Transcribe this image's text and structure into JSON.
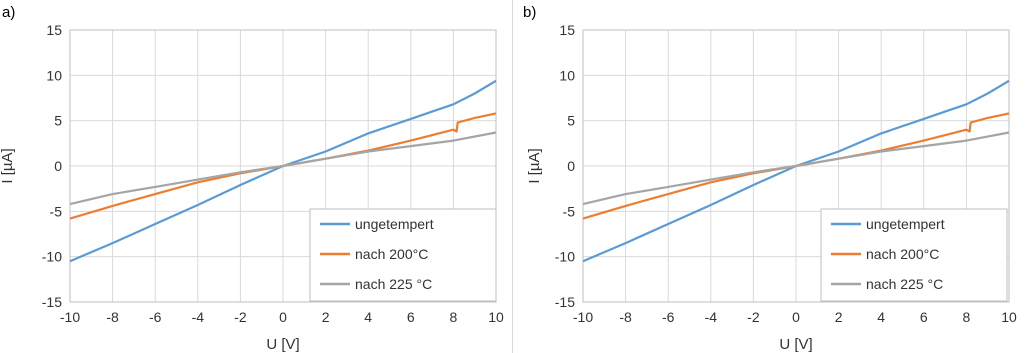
{
  "chart_data": [
    {
      "type": "line",
      "panel_label": "a)",
      "xlabel": "U [V]",
      "ylabel": "I [µA]",
      "xlim": [
        -10,
        10
      ],
      "ylim": [
        -15,
        15
      ],
      "xticks": [
        "-10",
        "-8",
        "-6",
        "-4",
        "-2",
        "0",
        "2",
        "4",
        "6",
        "8",
        "10"
      ],
      "yticks": [
        "15",
        "10",
        "5",
        "0",
        "-5",
        "-10",
        "-15"
      ],
      "grid": true,
      "legend_position": "bottom-right",
      "series": [
        {
          "name": "ungetempert",
          "color": "#5b9bd5",
          "x": [
            -10,
            -8,
            -6,
            -4,
            -2,
            0,
            2,
            4,
            6,
            7,
            8,
            9,
            10
          ],
          "y": [
            -10.5,
            -8.5,
            -6.4,
            -4.3,
            -2.1,
            0,
            1.6,
            3.6,
            5.2,
            6.0,
            6.8,
            8.0,
            9.4
          ]
        },
        {
          "name": "nach 200°C",
          "color": "#ed7d31",
          "x": [
            -10,
            -8,
            -6,
            -4,
            -2,
            0,
            2,
            4,
            6,
            8,
            8.15,
            8.2,
            9,
            10
          ],
          "y": [
            -5.8,
            -4.4,
            -3.1,
            -1.8,
            -0.8,
            0,
            0.8,
            1.7,
            2.8,
            4.0,
            3.8,
            4.8,
            5.3,
            5.8
          ]
        },
        {
          "name": "nach 225 °C",
          "color": "#a5a5a5",
          "x": [
            -10,
            -8,
            -6,
            -4,
            -2,
            0,
            2,
            4,
            6,
            8,
            10
          ],
          "y": [
            -4.2,
            -3.1,
            -2.3,
            -1.5,
            -0.7,
            0,
            0.8,
            1.6,
            2.2,
            2.8,
            3.7
          ]
        }
      ]
    },
    {
      "type": "line",
      "panel_label": "b)",
      "xlabel": "U [V]",
      "ylabel": "I [µA]",
      "xlim": [
        -10,
        10
      ],
      "ylim": [
        -15,
        15
      ],
      "xticks": [
        "-10",
        "-8",
        "-6",
        "-4",
        "-2",
        "0",
        "2",
        "4",
        "6",
        "8",
        "10"
      ],
      "yticks": [
        "15",
        "10",
        "5",
        "0",
        "-5",
        "-10",
        "-15"
      ],
      "grid": true,
      "legend_position": "bottom-right",
      "series": [
        {
          "name": "ungetempert",
          "color": "#5b9bd5",
          "x": [
            -10,
            -8,
            -6,
            -4,
            -2,
            0,
            2,
            4,
            6,
            7,
            8,
            9,
            10
          ],
          "y": [
            -10.5,
            -8.5,
            -6.4,
            -4.3,
            -2.1,
            0,
            1.6,
            3.6,
            5.2,
            6.0,
            6.8,
            8.0,
            9.4
          ]
        },
        {
          "name": "nach 200°C",
          "color": "#ed7d31",
          "x": [
            -10,
            -8,
            -6,
            -4,
            -2,
            0,
            2,
            4,
            6,
            8,
            8.15,
            8.2,
            9,
            10
          ],
          "y": [
            -5.8,
            -4.4,
            -3.1,
            -1.8,
            -0.8,
            0,
            0.8,
            1.7,
            2.8,
            4.0,
            3.8,
            4.8,
            5.3,
            5.8
          ]
        },
        {
          "name": "nach 225 °C",
          "color": "#a5a5a5",
          "x": [
            -10,
            -8,
            -6,
            -4,
            -2,
            0,
            2,
            4,
            6,
            8,
            10
          ],
          "y": [
            -4.2,
            -3.1,
            -2.3,
            -1.5,
            -0.7,
            0,
            0.8,
            1.6,
            2.2,
            2.8,
            3.7
          ]
        }
      ]
    }
  ]
}
